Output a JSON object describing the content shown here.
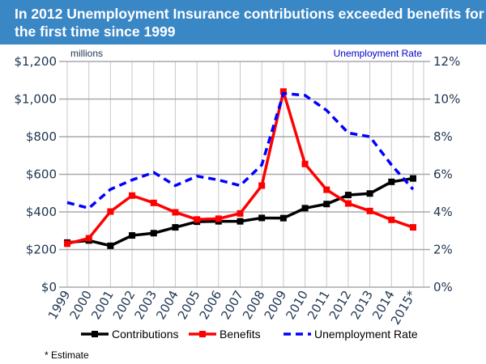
{
  "title": "In 2012 Unemployment Insurance contributions exceeded benefits for the first time since 1999",
  "chart_data": {
    "type": "line",
    "title": "In 2012 Unemployment Insurance contributions exceeded benefits for the first time since 1999",
    "left_axis_label": "millions",
    "right_axis_label": "Unemployment Rate",
    "categories": [
      "1999",
      "2000",
      "2001",
      "2002",
      "2003",
      "2004",
      "2005",
      "2006",
      "2007",
      "2008",
      "2009",
      "2010",
      "2011",
      "2012",
      "2013",
      "2014",
      "2015*"
    ],
    "left_ticks": [
      "$0",
      "$200",
      "$400",
      "$600",
      "$800",
      "$1,000",
      "$1,200"
    ],
    "right_ticks": [
      "0%",
      "2%",
      "4%",
      "6%",
      "8%",
      "10%",
      "12%"
    ],
    "ylim": [
      0,
      1200
    ],
    "y2lim": [
      0,
      12
    ],
    "series": [
      {
        "name": "Contributions",
        "axis": "left",
        "color": "#000000",
        "dash": false,
        "values": [
          237,
          248,
          220,
          275,
          287,
          318,
          348,
          350,
          350,
          368,
          367,
          420,
          442,
          490,
          498,
          560,
          578
        ]
      },
      {
        "name": "Benefits",
        "axis": "left",
        "color": "#ff0000",
        "dash": false,
        "values": [
          231,
          260,
          402,
          487,
          448,
          398,
          360,
          364,
          392,
          540,
          1040,
          655,
          518,
          445,
          405,
          358,
          318
        ]
      },
      {
        "name": "Unemployment Rate",
        "axis": "right",
        "color": "#0000ff",
        "dash": true,
        "values": [
          4.5,
          4.2,
          5.2,
          5.7,
          6.1,
          5.4,
          5.9,
          5.7,
          5.4,
          6.5,
          10.3,
          10.2,
          9.4,
          8.2,
          8.0,
          6.5,
          5.2
        ]
      }
    ],
    "legend_position": "bottom",
    "footnote": "* Estimate"
  }
}
